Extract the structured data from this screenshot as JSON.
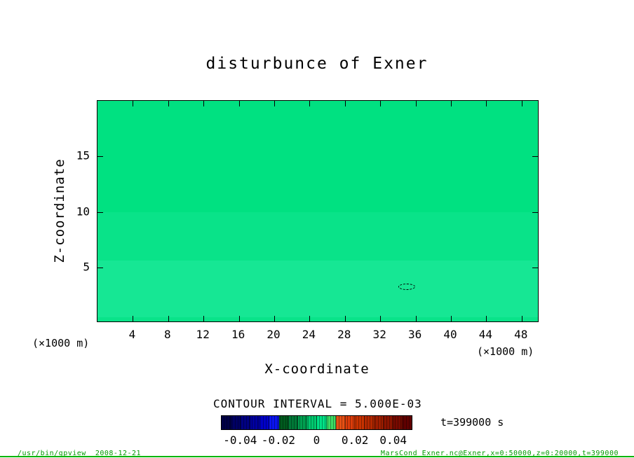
{
  "title": "disturbunce of Exner",
  "axes": {
    "x": {
      "label": "X-coordinate",
      "unit": "(×1000 m)",
      "range": [
        0,
        50
      ],
      "ticks": [
        4,
        8,
        12,
        16,
        20,
        24,
        28,
        32,
        36,
        40,
        44,
        48
      ]
    },
    "y": {
      "label": "Z-coordinate",
      "unit": "(×1000 m)",
      "range": [
        0,
        20
      ],
      "ticks": [
        5,
        10,
        15
      ]
    }
  },
  "legend": {
    "contour_interval_text": "CONTOUR INTERVAL = 5.000E-03",
    "time_text": "t=399000 s",
    "range": [
      -0.05,
      0.05
    ],
    "tick_values": [
      -0.04,
      -0.02,
      0,
      0.02,
      0.04
    ],
    "tick_labels": [
      "-0.04",
      "-0.02",
      "0",
      "0.02",
      "0.04"
    ],
    "segment_colors": [
      "#000046",
      "#000064",
      "#000082",
      "#0000a0",
      "#0000c8",
      "#0a14f0",
      "#005a1e",
      "#007837",
      "#00a050",
      "#00c86e",
      "#00e287",
      "#3cdc64",
      "#e65014",
      "#dc3c0a",
      "#c83200",
      "#b42800",
      "#a01e00",
      "#8c1400",
      "#780a00",
      "#600000"
    ]
  },
  "footer": {
    "left": "/usr/bin/gpview  2008-12-21",
    "right": "MarsCond_Exner.nc@Exner,x=0:50000,z=0:20000,t=399000"
  },
  "chart_data": {
    "type": "heatmap",
    "subtype": "filled_contour",
    "title": "disturbunce of Exner",
    "xlabel": "X-coordinate",
    "ylabel": "Z-coordinate",
    "x_unit": "(×1000 m)",
    "y_unit": "(×1000 m)",
    "xlim": [
      0,
      50
    ],
    "ylim": [
      0,
      20
    ],
    "x_ticks": [
      4,
      8,
      12,
      16,
      20,
      24,
      28,
      32,
      36,
      40,
      44,
      48
    ],
    "y_ticks": [
      5,
      10,
      15
    ],
    "value_range": [
      -0.05,
      0.05
    ],
    "contour_interval": 0.005,
    "time": "t=399000 s",
    "field_summary": "Exner disturbance is approximately 0 across the whole domain (single green zero band) with faint horizontal shading bands; one tiny dashed closed (negative) contour near x=35, z=3.3",
    "bands": [
      {
        "z_from": 10.0,
        "z_to": 20.0,
        "color": "#00e181"
      },
      {
        "z_from": 5.6,
        "z_to": 10.0,
        "color": "#09e389"
      },
      {
        "z_from": 0.5,
        "z_to": 5.6,
        "color": "#16e794"
      },
      {
        "z_from": 0.0,
        "z_to": 0.5,
        "color": "#09e389"
      }
    ],
    "dashed_contour": {
      "x": 35,
      "z": 3.3
    }
  }
}
